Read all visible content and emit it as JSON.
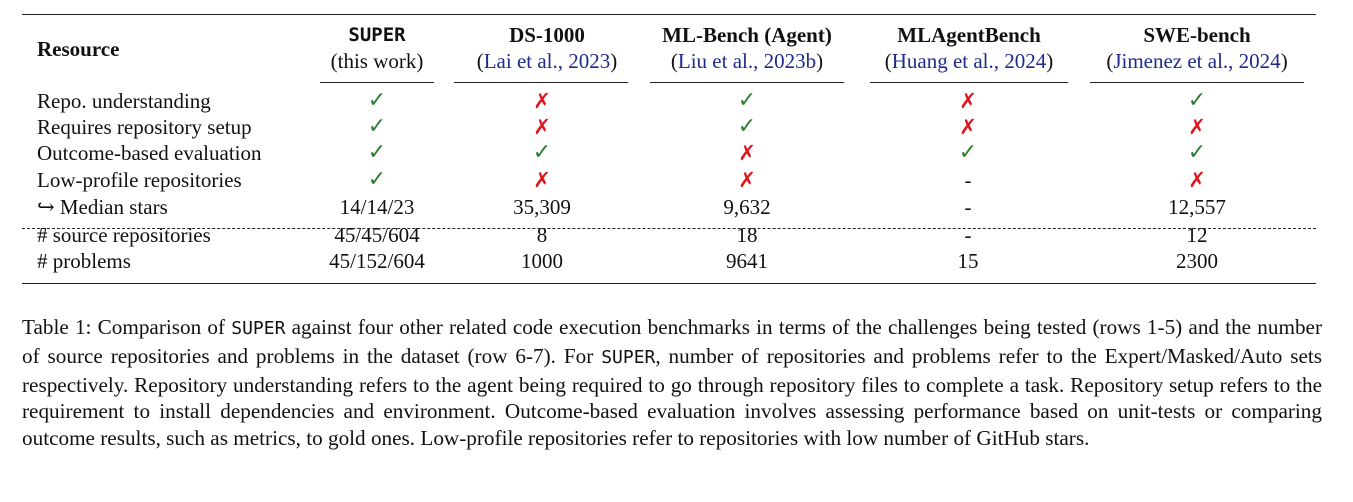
{
  "table": {
    "resource_header": "Resource",
    "columns": [
      {
        "name": "SUPER",
        "sub": "(this work)",
        "cite": ""
      },
      {
        "name": "DS-1000",
        "sub": "",
        "cite": "Lai et al., 2023"
      },
      {
        "name": "ML-Bench (Agent)",
        "sub": "",
        "cite": "Liu et al., 2023b"
      },
      {
        "name": "MLAgentBench",
        "sub": "",
        "cite": "Huang et al., 2024"
      },
      {
        "name": "SWE-bench",
        "sub": "",
        "cite": "Jimenez et al., 2024"
      }
    ],
    "rows": [
      {
        "label": "Repo. understanding",
        "values": [
          "✓",
          "✗",
          "✓",
          "✗",
          "✓"
        ]
      },
      {
        "label": "Requires repository setup",
        "values": [
          "✓",
          "✗",
          "✓",
          "✗",
          "✗"
        ]
      },
      {
        "label": "Outcome-based evaluation",
        "values": [
          "✓",
          "✓",
          "✗",
          "✓",
          "✓"
        ]
      },
      {
        "label": "Low-profile repositories",
        "values": [
          "✓",
          "✗",
          "✗",
          "-",
          "✗"
        ]
      },
      {
        "label": "↪ Median stars",
        "values": [
          "14/14/23",
          "35,309",
          "9,632",
          "-",
          "12,557"
        ]
      },
      {
        "label": "# source repositories",
        "values": [
          "45/45/604",
          "8",
          "18",
          "-",
          "12"
        ]
      },
      {
        "label": "# problems",
        "values": [
          "45/152/604",
          "1000",
          "9641",
          "15",
          "2300"
        ]
      }
    ]
  },
  "caption": {
    "label": "Table 1:",
    "part1": " Comparison of ",
    "super1": "SUPER",
    "part2": " against four other related code execution benchmarks in terms of the challenges being tested (rows 1-5) and the number of source repositories and problems in the dataset (row 6-7). For ",
    "super2": "SUPER",
    "part3": ", number of repositories and problems refer to the Expert/Masked/Auto sets respectively. Repository understanding refers to the agent being required to go through repository files to complete a task. Repository setup refers to the requirement to install dependencies and environment. Outcome-based evaluation involves assessing performance based on unit-tests or comparing outcome results, such as metrics, to gold ones. Low-profile repositories refer to repositories with low number of GitHub stars."
  }
}
